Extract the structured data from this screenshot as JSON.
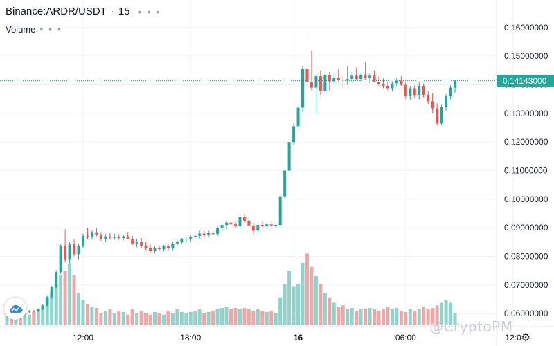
{
  "header": {
    "symbol": "Binance:ARDR/USDT",
    "interval": "15",
    "more_dots": "• • •"
  },
  "volume_pane": {
    "label": "Volume",
    "more_dots": "• • •"
  },
  "current_price": {
    "label": "0.14143000",
    "color": "#26a69a"
  },
  "watermark": "@CryptoPM",
  "icons": {
    "logo": "tradingview-cloud-icon",
    "settings": "gear-icon"
  },
  "colors": {
    "up": "#26a69a",
    "down": "#ef5350",
    "vol_up": "#8fd3cb",
    "vol_down": "#f2a5a5",
    "grid": "#f0f3fa",
    "axis_text": "#131722"
  },
  "chart_data": {
    "type": "candlestick",
    "y_axis": {
      "ticks": [
        "0.16000000",
        "0.15000000",
        "0.14000000",
        "0.13000000",
        "0.12000000",
        "0.11000000",
        "0.10000000",
        "0.09000000",
        "0.08000000",
        "0.07000000",
        "0.06000000"
      ],
      "range": [
        0.054,
        0.166
      ]
    },
    "x_axis": {
      "ticks": [
        {
          "label": "12:00",
          "bar": 17
        },
        {
          "label": "18:00",
          "bar": 41
        },
        {
          "label": "16",
          "bar": 65
        },
        {
          "label": "06:00",
          "bar": 89
        },
        {
          "label": "12:0",
          "bar": 113
        }
      ]
    },
    "candles": [
      [
        0.0598,
        0.0604,
        0.0596,
        0.0602
      ],
      [
        0.0602,
        0.0606,
        0.0598,
        0.06
      ],
      [
        0.06,
        0.0608,
        0.0598,
        0.0604
      ],
      [
        0.0604,
        0.0609,
        0.0601,
        0.0603
      ],
      [
        0.0603,
        0.061,
        0.06,
        0.0606
      ],
      [
        0.0606,
        0.0612,
        0.0603,
        0.0609
      ],
      [
        0.0609,
        0.0613,
        0.0605,
        0.0608
      ],
      [
        0.0608,
        0.0618,
        0.0605,
        0.0615
      ],
      [
        0.0615,
        0.0632,
        0.0612,
        0.0628
      ],
      [
        0.0628,
        0.0662,
        0.0625,
        0.0658
      ],
      [
        0.0658,
        0.0698,
        0.0652,
        0.0692
      ],
      [
        0.0692,
        0.0752,
        0.0688,
        0.0745
      ],
      [
        0.0745,
        0.0842,
        0.0738,
        0.0838
      ],
      [
        0.0838,
        0.0895,
        0.078,
        0.079
      ],
      [
        0.079,
        0.085,
        0.0775,
        0.0842
      ],
      [
        0.0842,
        0.086,
        0.08,
        0.0808
      ],
      [
        0.0808,
        0.0845,
        0.079,
        0.0838
      ],
      [
        0.0838,
        0.088,
        0.083,
        0.0872
      ],
      [
        0.0872,
        0.09,
        0.086,
        0.0868
      ],
      [
        0.0868,
        0.089,
        0.086,
        0.0885
      ],
      [
        0.0885,
        0.09,
        0.087,
        0.0875
      ],
      [
        0.0875,
        0.0885,
        0.0855,
        0.086
      ],
      [
        0.086,
        0.0878,
        0.085,
        0.087
      ],
      [
        0.087,
        0.0882,
        0.086,
        0.0865
      ],
      [
        0.0865,
        0.088,
        0.0858,
        0.0868
      ],
      [
        0.0868,
        0.0878,
        0.0858,
        0.0864
      ],
      [
        0.0864,
        0.0875,
        0.0856,
        0.087
      ],
      [
        0.087,
        0.0885,
        0.0862,
        0.086
      ],
      [
        0.086,
        0.0872,
        0.084,
        0.0845
      ],
      [
        0.0845,
        0.086,
        0.0832,
        0.0852
      ],
      [
        0.0852,
        0.0865,
        0.083,
        0.0838
      ],
      [
        0.0838,
        0.085,
        0.0822,
        0.083
      ],
      [
        0.083,
        0.0842,
        0.0815,
        0.082
      ],
      [
        0.082,
        0.0835,
        0.081,
        0.0828
      ],
      [
        0.0828,
        0.0838,
        0.0818,
        0.0825
      ],
      [
        0.0825,
        0.084,
        0.0818,
        0.0835
      ],
      [
        0.0835,
        0.0845,
        0.0822,
        0.0828
      ],
      [
        0.0828,
        0.085,
        0.0822,
        0.0845
      ],
      [
        0.0845,
        0.0858,
        0.0836,
        0.0852
      ],
      [
        0.0852,
        0.0865,
        0.0845,
        0.086
      ],
      [
        0.086,
        0.087,
        0.0848,
        0.0862
      ],
      [
        0.0862,
        0.0875,
        0.0852,
        0.0868
      ],
      [
        0.0868,
        0.088,
        0.086,
        0.0872
      ],
      [
        0.0872,
        0.089,
        0.0862,
        0.088
      ],
      [
        0.088,
        0.0892,
        0.0868,
        0.0874
      ],
      [
        0.0874,
        0.089,
        0.0866,
        0.0882
      ],
      [
        0.0882,
        0.0895,
        0.0872,
        0.0878
      ],
      [
        0.0878,
        0.0905,
        0.0872,
        0.0898
      ],
      [
        0.0898,
        0.0915,
        0.0888,
        0.091
      ],
      [
        0.091,
        0.0925,
        0.0895,
        0.0918
      ],
      [
        0.0918,
        0.093,
        0.0905,
        0.0912
      ],
      [
        0.0912,
        0.0925,
        0.09,
        0.0905
      ],
      [
        0.0905,
        0.0945,
        0.09,
        0.0938
      ],
      [
        0.0938,
        0.095,
        0.0918,
        0.0925
      ],
      [
        0.0925,
        0.0935,
        0.09,
        0.0908
      ],
      [
        0.0908,
        0.0918,
        0.0875,
        0.089
      ],
      [
        0.089,
        0.0915,
        0.088,
        0.091
      ],
      [
        0.091,
        0.0922,
        0.0898,
        0.0905
      ],
      [
        0.0905,
        0.0918,
        0.0895,
        0.0912
      ],
      [
        0.0912,
        0.0922,
        0.09,
        0.0908
      ],
      [
        0.0908,
        0.0915,
        0.0898,
        0.091
      ],
      [
        0.091,
        0.1015,
        0.0905,
        0.101
      ],
      [
        0.101,
        0.1105,
        0.1,
        0.11
      ],
      [
        0.11,
        0.1205,
        0.1095,
        0.12
      ],
      [
        0.12,
        0.1265,
        0.119,
        0.1255
      ],
      [
        0.1255,
        0.133,
        0.1245,
        0.132
      ],
      [
        0.132,
        0.1465,
        0.1305,
        0.1455
      ],
      [
        0.1455,
        0.157,
        0.139,
        0.141
      ],
      [
        0.141,
        0.152,
        0.138,
        0.139
      ],
      [
        0.139,
        0.144,
        0.13,
        0.143
      ],
      [
        0.143,
        0.145,
        0.1365,
        0.1378
      ],
      [
        0.1378,
        0.1445,
        0.137,
        0.1435
      ],
      [
        0.1435,
        0.1445,
        0.138,
        0.1412
      ],
      [
        0.1412,
        0.144,
        0.14,
        0.1425
      ],
      [
        0.1425,
        0.1455,
        0.141,
        0.1418
      ],
      [
        0.1418,
        0.143,
        0.139,
        0.1415
      ],
      [
        0.1415,
        0.1465,
        0.14,
        0.142
      ],
      [
        0.142,
        0.1445,
        0.141,
        0.1432
      ],
      [
        0.1432,
        0.146,
        0.1415,
        0.142
      ],
      [
        0.142,
        0.1442,
        0.141,
        0.1435
      ],
      [
        0.1435,
        0.1478,
        0.1418,
        0.1425
      ],
      [
        0.1425,
        0.144,
        0.1405,
        0.1432
      ],
      [
        0.1432,
        0.145,
        0.141,
        0.141
      ],
      [
        0.141,
        0.143,
        0.1395,
        0.1402
      ],
      [
        0.1402,
        0.1422,
        0.1388,
        0.1395
      ],
      [
        0.1395,
        0.141,
        0.1378,
        0.1388
      ],
      [
        0.1388,
        0.1412,
        0.1378,
        0.1405
      ],
      [
        0.1405,
        0.1425,
        0.1395,
        0.1415
      ],
      [
        0.1415,
        0.143,
        0.1395,
        0.14
      ],
      [
        0.14,
        0.1412,
        0.135,
        0.136
      ],
      [
        0.136,
        0.1395,
        0.1348,
        0.1388
      ],
      [
        0.1388,
        0.1398,
        0.1352,
        0.1362
      ],
      [
        0.1362,
        0.141,
        0.135,
        0.1395
      ],
      [
        0.1395,
        0.1405,
        0.1355,
        0.1365
      ],
      [
        0.1365,
        0.1378,
        0.1332,
        0.1342
      ],
      [
        0.1342,
        0.137,
        0.13,
        0.1318
      ],
      [
        0.1318,
        0.1335,
        0.1258,
        0.1265
      ],
      [
        0.1265,
        0.133,
        0.1258,
        0.1322
      ],
      [
        0.1322,
        0.1368,
        0.131,
        0.136
      ],
      [
        0.136,
        0.1398,
        0.135,
        0.139
      ],
      [
        0.139,
        0.1418,
        0.1372,
        0.1414
      ]
    ],
    "volume": {
      "values": [
        8,
        9,
        8,
        7,
        9,
        8,
        10,
        12,
        15,
        21,
        25,
        31,
        38,
        41,
        46,
        38,
        24,
        19,
        16,
        14,
        13,
        9,
        11,
        12,
        9,
        11,
        10,
        8,
        12,
        9,
        11,
        9,
        8,
        10,
        9,
        8,
        11,
        9,
        12,
        10,
        9,
        10,
        11,
        12,
        9,
        10,
        11,
        12,
        13,
        14,
        12,
        13,
        12,
        13,
        12,
        11,
        12,
        11,
        10,
        11,
        9,
        21,
        31,
        41,
        29,
        31,
        47,
        54,
        44,
        37,
        31,
        24,
        21,
        17,
        14,
        15,
        12,
        13,
        11,
        12,
        12,
        13,
        12,
        11,
        12,
        14,
        12,
        13,
        11,
        10,
        12,
        11,
        12,
        14,
        12,
        13,
        15,
        17,
        19,
        17,
        9
      ],
      "max": 60
    }
  }
}
